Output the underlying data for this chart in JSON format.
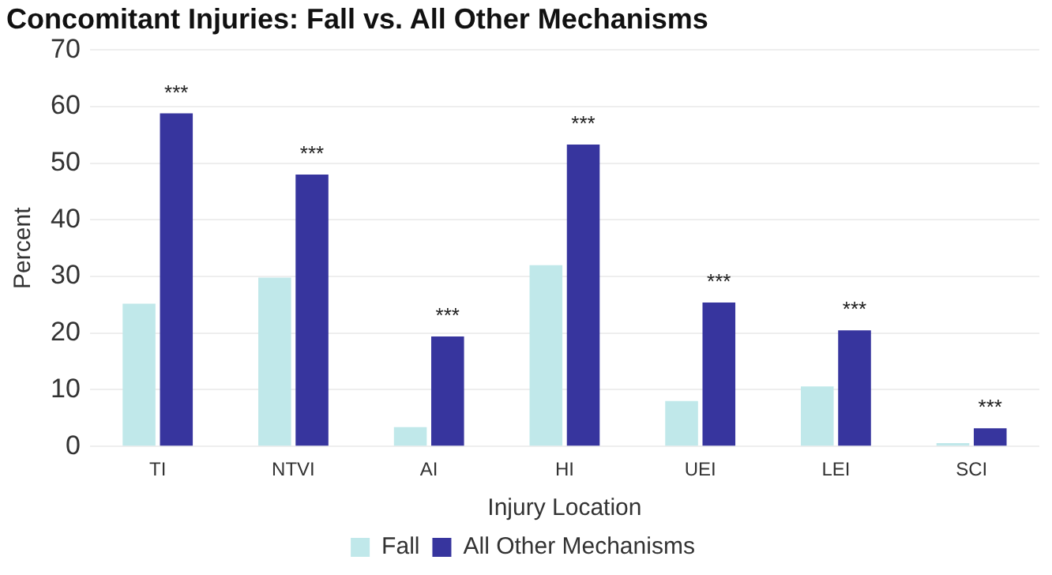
{
  "chart_data": {
    "type": "bar",
    "title": "Concomitant Injuries: Fall vs. All Other Mechanisms",
    "xlabel": "Injury Location",
    "ylabel": "Percent",
    "categories": [
      "TI",
      "NTVI",
      "AI",
      "HI",
      "UEI",
      "LEI",
      "SCI"
    ],
    "series": [
      {
        "name": "Fall",
        "color": "#c0e8ea",
        "values": [
          25.2,
          29.8,
          3.4,
          32,
          8,
          10.6,
          0.6
        ]
      },
      {
        "name": "All Other Mechanisms",
        "color": "#37359e",
        "values": [
          58.8,
          48,
          19.4,
          53.3,
          25.4,
          20.5,
          3.2
        ]
      }
    ],
    "ylim": [
      0,
      70
    ],
    "yticks": [
      0,
      10,
      20,
      30,
      40,
      50,
      60,
      70
    ],
    "grid": "y",
    "legend": "bottom",
    "annotations": [
      {
        "text": "***",
        "x": "TI",
        "y": 58.8
      },
      {
        "text": "***",
        "x": "NTVI",
        "y": 48
      },
      {
        "text": "***",
        "x": "AI",
        "y": 19.4
      },
      {
        "text": "***",
        "x": "HI",
        "y": 53.3
      },
      {
        "text": "***",
        "x": "UEI",
        "y": 25.4
      },
      {
        "text": "***",
        "x": "LEI",
        "y": 20.5
      },
      {
        "text": "***",
        "x": "SCI",
        "y": 3.2
      }
    ]
  }
}
